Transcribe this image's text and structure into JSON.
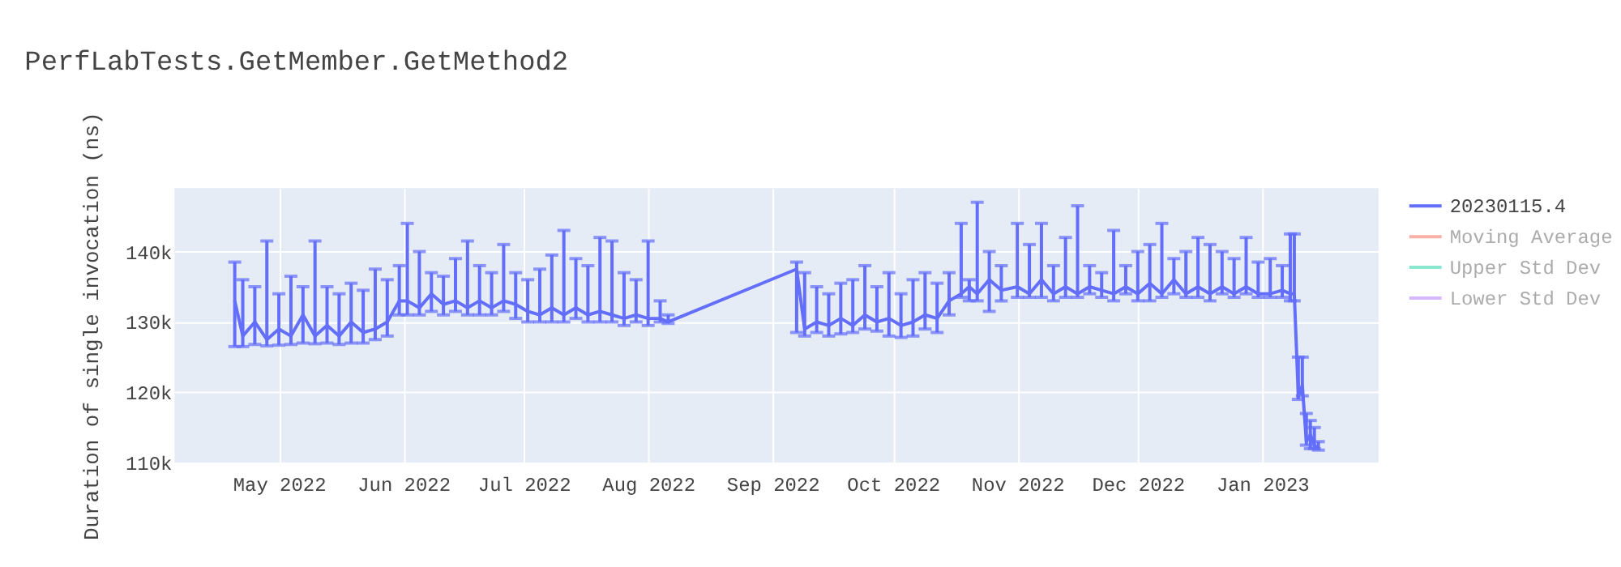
{
  "chart_data": {
    "type": "line",
    "title": "PerfLabTests.GetMember.GetMethod2",
    "ylabel": "Duration of single invocation (ns)",
    "legend": "top right",
    "grid": true,
    "marker": "none",
    "line_style": "solid",
    "x": [
      "2022-04-20",
      "2022-04-22",
      "2022-04-25",
      "2022-04-28",
      "2022-05-01",
      "2022-05-04",
      "2022-05-07",
      "2022-05-10",
      "2022-05-13",
      "2022-05-16",
      "2022-05-19",
      "2022-05-22",
      "2022-05-25",
      "2022-05-28",
      "2022-05-31",
      "2022-06-02",
      "2022-06-05",
      "2022-06-08",
      "2022-06-11",
      "2022-06-14",
      "2022-06-17",
      "2022-06-20",
      "2022-06-23",
      "2022-06-26",
      "2022-06-29",
      "2022-07-02",
      "2022-07-05",
      "2022-07-08",
      "2022-07-11",
      "2022-07-14",
      "2022-07-17",
      "2022-07-20",
      "2022-07-23",
      "2022-07-26",
      "2022-07-29",
      "2022-08-01",
      "2022-08-04",
      "2022-08-06",
      "2022-09-07",
      "2022-09-09",
      "2022-09-12",
      "2022-09-15",
      "2022-09-18",
      "2022-09-21",
      "2022-09-24",
      "2022-09-27",
      "2022-09-30",
      "2022-10-03",
      "2022-10-06",
      "2022-10-09",
      "2022-10-12",
      "2022-10-15",
      "2022-10-18",
      "2022-10-20",
      "2022-10-22",
      "2022-10-25",
      "2022-10-28",
      "2022-11-01",
      "2022-11-04",
      "2022-11-07",
      "2022-11-10",
      "2022-11-13",
      "2022-11-16",
      "2022-11-19",
      "2022-11-22",
      "2022-11-25",
      "2022-11-28",
      "2022-12-01",
      "2022-12-04",
      "2022-12-07",
      "2022-12-10",
      "2022-12-13",
      "2022-12-16",
      "2022-12-19",
      "2022-12-22",
      "2022-12-25",
      "2022-12-28",
      "2022-12-31",
      "2023-01-03",
      "2023-01-06",
      "2023-01-08",
      "2023-01-09",
      "2023-01-10",
      "2023-01-11",
      "2023-01-12",
      "2023-01-13",
      "2023-01-14",
      "2023-01-15"
    ],
    "xlim": [
      "2022-04-05",
      "2023-01-30"
    ],
    "xticks": [
      {
        "value": "2022-05-01",
        "label": "May 2022"
      },
      {
        "value": "2022-06-01",
        "label": "Jun 2022"
      },
      {
        "value": "2022-07-01",
        "label": "Jul 2022"
      },
      {
        "value": "2022-08-01",
        "label": "Aug 2022"
      },
      {
        "value": "2022-09-01",
        "label": "Sep 2022"
      },
      {
        "value": "2022-10-01",
        "label": "Oct 2022"
      },
      {
        "value": "2022-11-01",
        "label": "Nov 2022"
      },
      {
        "value": "2022-12-01",
        "label": "Dec 2022"
      },
      {
        "value": "2023-01-01",
        "label": "Jan 2023"
      }
    ],
    "ylim": [
      110000,
      149000
    ],
    "yticks": [
      {
        "value": 110000,
        "label": "110k"
      },
      {
        "value": 120000,
        "label": "120k"
      },
      {
        "value": 130000,
        "label": "130k"
      },
      {
        "value": 140000,
        "label": "140k"
      }
    ],
    "series": [
      {
        "name": "20230115.4",
        "color": "#636efa",
        "values": [
          133000,
          128000,
          130000,
          127500,
          129000,
          128000,
          131000,
          128000,
          129500,
          128000,
          130000,
          128500,
          129000,
          130000,
          133000,
          133000,
          132000,
          134000,
          132500,
          133000,
          132000,
          133000,
          132000,
          133000,
          132500,
          131500,
          131000,
          132000,
          131000,
          132000,
          131000,
          131500,
          131000,
          130500,
          131000,
          130500,
          130500,
          130000,
          137500,
          129000,
          130000,
          129500,
          130500,
          129500,
          131000,
          130000,
          130500,
          129500,
          130000,
          131000,
          130500,
          133000,
          134000,
          135000,
          134000,
          136000,
          134500,
          135000,
          134000,
          136000,
          134000,
          135000,
          134000,
          135000,
          134500,
          134000,
          135000,
          134000,
          135500,
          134000,
          136000,
          134000,
          135000,
          134000,
          135000,
          134000,
          135000,
          134000,
          134000,
          134500,
          134000,
          134000,
          119500,
          121000,
          113000,
          114000,
          112500,
          112000
        ],
        "errors": [
          [
            126500,
            138500
          ],
          [
            126500,
            136000
          ],
          [
            126800,
            135000
          ],
          [
            126600,
            141500
          ],
          [
            126700,
            134000
          ],
          [
            126800,
            136500
          ],
          [
            127000,
            135000
          ],
          [
            126900,
            141500
          ],
          [
            127000,
            135000
          ],
          [
            126800,
            134000
          ],
          [
            127000,
            135500
          ],
          [
            127000,
            134500
          ],
          [
            127500,
            137500
          ],
          [
            128000,
            136000
          ],
          [
            131000,
            138000
          ],
          [
            131000,
            144000
          ],
          [
            131000,
            140000
          ],
          [
            131500,
            137000
          ],
          [
            131000,
            136500
          ],
          [
            131500,
            139000
          ],
          [
            131000,
            141500
          ],
          [
            131000,
            138000
          ],
          [
            131000,
            137000
          ],
          [
            131500,
            141000
          ],
          [
            130500,
            137000
          ],
          [
            130000,
            136000
          ],
          [
            130000,
            137500
          ],
          [
            130000,
            139500
          ],
          [
            130000,
            143000
          ],
          [
            130500,
            139000
          ],
          [
            130000,
            138000
          ],
          [
            130000,
            142000
          ],
          [
            130000,
            141500
          ],
          [
            129500,
            137000
          ],
          [
            130000,
            136000
          ],
          [
            129500,
            141500
          ],
          [
            130000,
            133000
          ],
          [
            129800,
            131000
          ],
          [
            128500,
            138500
          ],
          [
            128000,
            137000
          ],
          [
            128500,
            135000
          ],
          [
            128000,
            134000
          ],
          [
            128300,
            135500
          ],
          [
            128500,
            136000
          ],
          [
            129000,
            138000
          ],
          [
            128700,
            135000
          ],
          [
            128000,
            137000
          ],
          [
            127800,
            134000
          ],
          [
            128000,
            136000
          ],
          [
            129000,
            137000
          ],
          [
            128500,
            135500
          ],
          [
            131000,
            137000
          ],
          [
            133500,
            144000
          ],
          [
            133000,
            136000
          ],
          [
            133000,
            147000
          ],
          [
            131500,
            140000
          ],
          [
            133000,
            138000
          ],
          [
            133500,
            144000
          ],
          [
            133500,
            141000
          ],
          [
            133500,
            144000
          ],
          [
            133000,
            138000
          ],
          [
            133500,
            142000
          ],
          [
            133500,
            146500
          ],
          [
            134000,
            138000
          ],
          [
            133500,
            137000
          ],
          [
            133000,
            143000
          ],
          [
            134000,
            138000
          ],
          [
            133000,
            140000
          ],
          [
            133000,
            141000
          ],
          [
            133500,
            144000
          ],
          [
            134000,
            139000
          ],
          [
            133500,
            140000
          ],
          [
            133500,
            142000
          ],
          [
            133000,
            141000
          ],
          [
            134000,
            140000
          ],
          [
            133500,
            139000
          ],
          [
            134000,
            142000
          ],
          [
            133500,
            138500
          ],
          [
            133500,
            139000
          ],
          [
            133500,
            138000
          ],
          [
            133000,
            142500
          ],
          [
            133000,
            142500
          ],
          [
            119000,
            125000
          ],
          [
            119500,
            125000
          ],
          [
            112500,
            117000
          ],
          [
            112000,
            116000
          ],
          [
            112000,
            115000
          ],
          [
            111800,
            113000
          ]
        ]
      },
      {
        "name": "Moving Average",
        "color": "#ef553b",
        "values": [
          null,
          null,
          null,
          null,
          null,
          null,
          null,
          null,
          null,
          null,
          null,
          null,
          null,
          null,
          null,
          null,
          null,
          null,
          null,
          null,
          null,
          null,
          null,
          null,
          null,
          null,
          null,
          null,
          null,
          null,
          null,
          null,
          null,
          null,
          null,
          null,
          null,
          null,
          null,
          null,
          null,
          null,
          null,
          null,
          null,
          null,
          null,
          null,
          null,
          null,
          null,
          null,
          null,
          null,
          null,
          null,
          null,
          null,
          null,
          null,
          null,
          null,
          null,
          null,
          null,
          null,
          null,
          null,
          null,
          null,
          null,
          null,
          null,
          null,
          null,
          null,
          null,
          null,
          null,
          null,
          null,
          null,
          null,
          null,
          null,
          null,
          null,
          null
        ]
      },
      {
        "name": "Upper Std Dev",
        "color": "#00cc96",
        "values": [
          null,
          null,
          null,
          null,
          null,
          null,
          null,
          null,
          null,
          null,
          null,
          null,
          null,
          null,
          null,
          null,
          null,
          null,
          null,
          null,
          null,
          null,
          null,
          null,
          null,
          null,
          null,
          null,
          null,
          null,
          null,
          null,
          null,
          null,
          null,
          null,
          null,
          null,
          null,
          null,
          null,
          null,
          null,
          null,
          null,
          null,
          null,
          null,
          null,
          null,
          null,
          null,
          null,
          null,
          null,
          null,
          null,
          null,
          null,
          null,
          null,
          null,
          null,
          null,
          null,
          null,
          null,
          null,
          null,
          null,
          null,
          null,
          null,
          null,
          null,
          null,
          null,
          null,
          null,
          null,
          null,
          null,
          null,
          null,
          null,
          null,
          null,
          null
        ]
      },
      {
        "name": "Lower Std Dev",
        "color": "#ab63fa",
        "values": [
          null,
          null,
          null,
          null,
          null,
          null,
          null,
          null,
          null,
          null,
          null,
          null,
          null,
          null,
          null,
          null,
          null,
          null,
          null,
          null,
          null,
          null,
          null,
          null,
          null,
          null,
          null,
          null,
          null,
          null,
          null,
          null,
          null,
          null,
          null,
          null,
          null,
          null,
          null,
          null,
          null,
          null,
          null,
          null,
          null,
          null,
          null,
          null,
          null,
          null,
          null,
          null,
          null,
          null,
          null,
          null,
          null,
          null,
          null,
          null,
          null,
          null,
          null,
          null,
          null,
          null,
          null,
          null,
          null,
          null,
          null,
          null,
          null,
          null,
          null,
          null,
          null,
          null,
          null,
          null,
          null,
          null,
          null,
          null,
          null,
          null,
          null,
          null
        ]
      }
    ]
  }
}
